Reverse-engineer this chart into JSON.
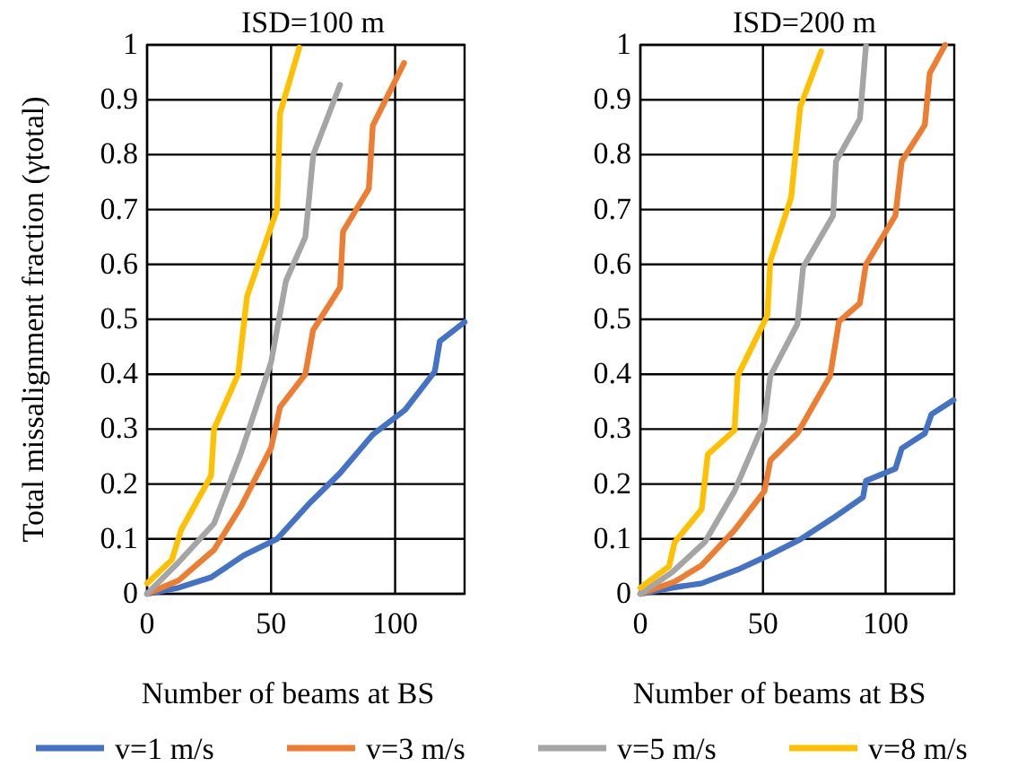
{
  "chart_data": [
    {
      "type": "line",
      "title": "ISD=100 m",
      "xlabel": "Number of beams at BS",
      "ylabel": "Total missalignment fraction (γtotal)",
      "xlim": [
        0,
        128
      ],
      "xticks": [
        0,
        50,
        100
      ],
      "ylim": [
        0,
        1
      ],
      "yticks": [
        0,
        0.1,
        0.2,
        0.3,
        0.4,
        0.5,
        0.6,
        0.7,
        0.8,
        0.9,
        1
      ],
      "grid": true,
      "legend": "bottom",
      "marker": "none",
      "line_style": "solid",
      "series": [
        {
          "name": "v=1 m/s",
          "color": "#4472c4",
          "x": [
            0,
            12.6,
            25.8,
            39,
            52.4,
            65.7,
            77.8,
            91,
            104,
            116,
            118,
            128
          ],
          "values": [
            0,
            0.011,
            0.03,
            0.07,
            0.1,
            0.166,
            0.22,
            0.29,
            0.335,
            0.405,
            0.46,
            0.495
          ]
        },
        {
          "name": "v=3 m/s",
          "color": "#ed7d31",
          "x": [
            0,
            12.6,
            27,
            38,
            50,
            53.6,
            63.8,
            66.9,
            77.8,
            79,
            89.4,
            91,
            103.6
          ],
          "values": [
            0,
            0.024,
            0.08,
            0.16,
            0.266,
            0.34,
            0.4,
            0.48,
            0.558,
            0.66,
            0.738,
            0.853,
            0.967
          ]
        },
        {
          "name": "v=5 m/s",
          "color": "#a5a5a5",
          "x": [
            0,
            12.6,
            27,
            38,
            50,
            56,
            63.8,
            67,
            77.8
          ],
          "values": [
            0,
            0.057,
            0.128,
            0.258,
            0.422,
            0.57,
            0.65,
            0.8,
            0.927
          ]
        },
        {
          "name": "v=8 m/s",
          "color": "#ffc000",
          "x": [
            0,
            10,
            13.8,
            25.8,
            27,
            36.7,
            40.3,
            52.4,
            53.6,
            61.4
          ],
          "values": [
            0.019,
            0.062,
            0.117,
            0.215,
            0.3,
            0.4,
            0.542,
            0.7,
            0.875,
            0.995
          ]
        }
      ]
    },
    {
      "type": "line",
      "title": "ISD=200 m",
      "xlabel": "Number of beams at BS",
      "xlim": [
        0,
        128
      ],
      "xticks": [
        0,
        50,
        100
      ],
      "ylim": [
        0,
        1
      ],
      "yticks": [
        0,
        0.1,
        0.2,
        0.3,
        0.4,
        0.5,
        0.6,
        0.7,
        0.8,
        0.9,
        1
      ],
      "grid": true,
      "marker": "none",
      "line_style": "solid",
      "series": [
        {
          "color": "#4472c4",
          "x": [
            0,
            12.9,
            25,
            39.7,
            51.8,
            65.2,
            78.6,
            90.8,
            92,
            104,
            106.6,
            116,
            118.7,
            127.7
          ],
          "values": [
            0,
            0.011,
            0.019,
            0.044,
            0.069,
            0.099,
            0.138,
            0.176,
            0.206,
            0.228,
            0.265,
            0.292,
            0.327,
            0.353
          ]
        },
        {
          "color": "#ed7d31",
          "x": [
            0,
            14,
            25,
            38.4,
            50.6,
            53,
            64,
            77.4,
            81,
            89.5,
            92,
            104,
            106.6,
            116,
            118,
            124.3
          ],
          "values": [
            0,
            0.022,
            0.052,
            0.116,
            0.187,
            0.243,
            0.292,
            0.397,
            0.496,
            0.529,
            0.6,
            0.689,
            0.788,
            0.854,
            0.948,
            1
          ]
        },
        {
          "color": "#a5a5a5",
          "x": [
            0,
            12.9,
            26.3,
            38.4,
            50.6,
            53,
            64,
            66.4,
            78.6,
            79.8,
            89.5,
            92
          ],
          "values": [
            0,
            0.039,
            0.094,
            0.187,
            0.314,
            0.397,
            0.491,
            0.595,
            0.689,
            0.788,
            0.865,
            0.998
          ]
        },
        {
          "color": "#ffc000",
          "x": [
            0,
            11.7,
            14,
            25,
            27.5,
            38.4,
            39.7,
            51.8,
            53,
            61.5,
            65.2,
            73.7
          ],
          "values": [
            0.011,
            0.05,
            0.094,
            0.154,
            0.254,
            0.298,
            0.397,
            0.507,
            0.606,
            0.722,
            0.887,
            0.988
          ]
        }
      ]
    }
  ]
}
